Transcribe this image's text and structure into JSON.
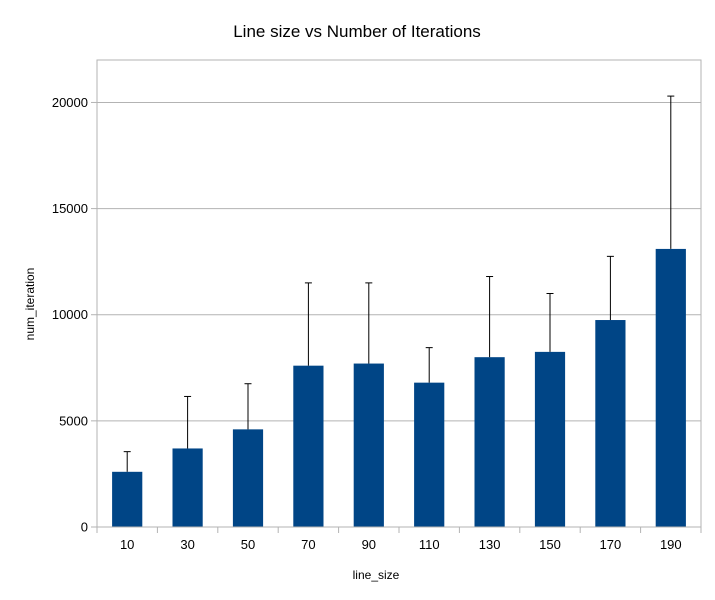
{
  "chart_data": {
    "type": "bar",
    "title": "Line size vs Number of Iterations",
    "xlabel": "line_size",
    "ylabel": "num_iteration",
    "categories": [
      "10",
      "30",
      "50",
      "70",
      "90",
      "110",
      "130",
      "150",
      "170",
      "190"
    ],
    "values": [
      2600,
      3700,
      4600,
      7600,
      7700,
      6800,
      8000,
      8250,
      9750,
      13100
    ],
    "error_upper": [
      3550,
      6150,
      6750,
      11500,
      11500,
      8450,
      11800,
      11000,
      12750,
      20300
    ],
    "ylim": [
      0,
      22000
    ],
    "yticks": [
      0,
      5000,
      10000,
      15000,
      20000
    ],
    "grid": true,
    "bar_color": "#004586"
  }
}
